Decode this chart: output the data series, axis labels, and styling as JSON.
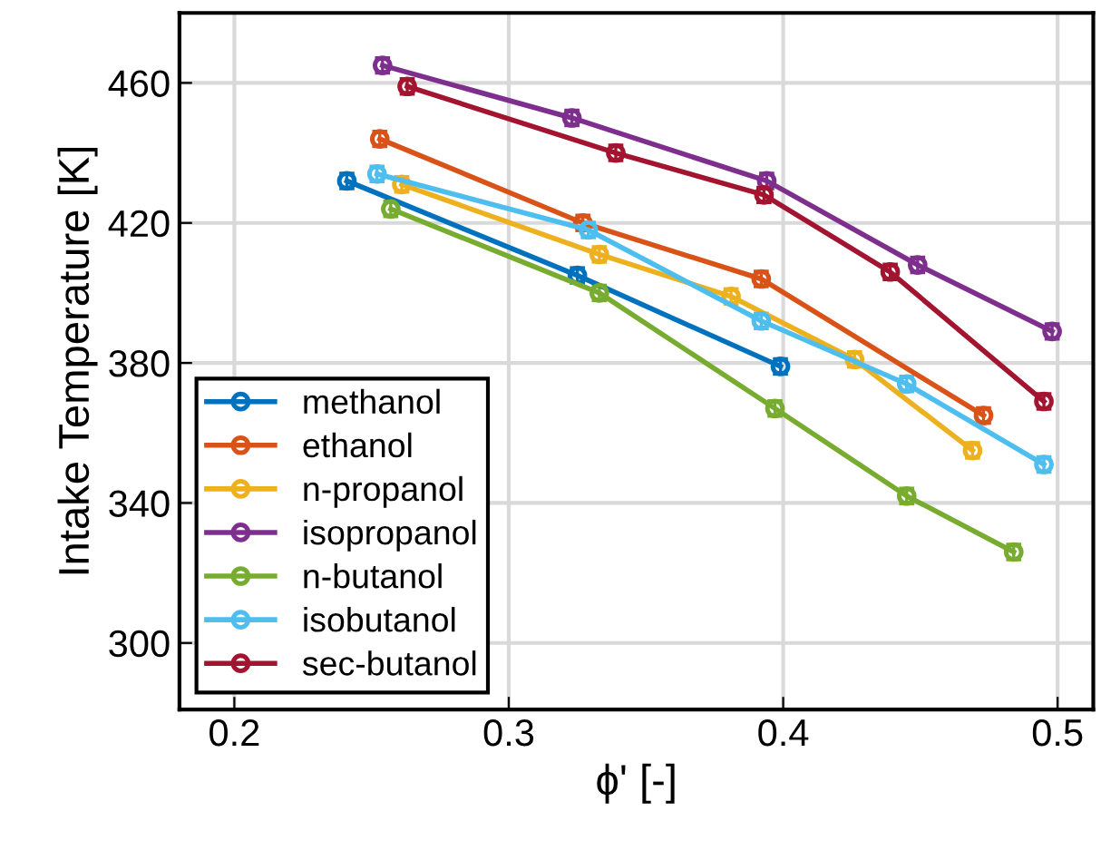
{
  "chart_data": {
    "type": "line",
    "xlabel": "ϕ' [-]",
    "ylabel": "Intake Temperature [K]",
    "xlim": [
      0.18,
      0.513
    ],
    "ylim": [
      281,
      480
    ],
    "xticks": [
      0.2,
      0.3,
      0.4,
      0.5
    ],
    "yticks": [
      300,
      340,
      380,
      420,
      460
    ],
    "grid": true,
    "legend": "bottom left",
    "marker": "circle",
    "line_style": "solid",
    "series": [
      {
        "name": "methanol",
        "color": "#0072bd",
        "x": [
          0.241,
          0.325,
          0.399
        ],
        "values": [
          432,
          405,
          379
        ],
        "errors": [
          2,
          2,
          2
        ]
      },
      {
        "name": "ethanol",
        "color": "#d95319",
        "x": [
          0.253,
          0.327,
          0.392,
          0.473
        ],
        "values": [
          444,
          420,
          404,
          365
        ],
        "errors": [
          2,
          2,
          2,
          2
        ]
      },
      {
        "name": "n-propanol",
        "color": "#edb120",
        "x": [
          0.261,
          0.333,
          0.381,
          0.426,
          0.469
        ],
        "values": [
          431,
          411,
          399,
          381,
          355
        ],
        "errors": [
          2,
          2,
          2,
          2,
          2
        ]
      },
      {
        "name": "isopropanol",
        "color": "#7e2f8e",
        "x": [
          0.254,
          0.323,
          0.394,
          0.449,
          0.498
        ],
        "values": [
          465,
          450,
          432,
          408,
          389
        ],
        "errors": [
          2,
          2,
          2,
          2,
          2
        ]
      },
      {
        "name": "n-butanol",
        "color": "#77ac30",
        "x": [
          0.257,
          0.333,
          0.397,
          0.445,
          0.484
        ],
        "values": [
          424,
          400,
          367,
          342,
          326
        ],
        "errors": [
          2,
          2,
          2,
          2,
          2
        ]
      },
      {
        "name": "isobutanol",
        "color": "#4dbeee",
        "x": [
          0.252,
          0.329,
          0.392,
          0.445,
          0.495
        ],
        "values": [
          434,
          418,
          392,
          374,
          351
        ],
        "errors": [
          2,
          2,
          2,
          2,
          2
        ]
      },
      {
        "name": "sec-butanol",
        "color": "#a2142f",
        "x": [
          0.263,
          0.339,
          0.393,
          0.439,
          0.495
        ],
        "values": [
          459,
          440,
          428,
          406,
          369
        ],
        "errors": [
          2,
          2,
          2,
          2,
          2
        ]
      }
    ]
  }
}
